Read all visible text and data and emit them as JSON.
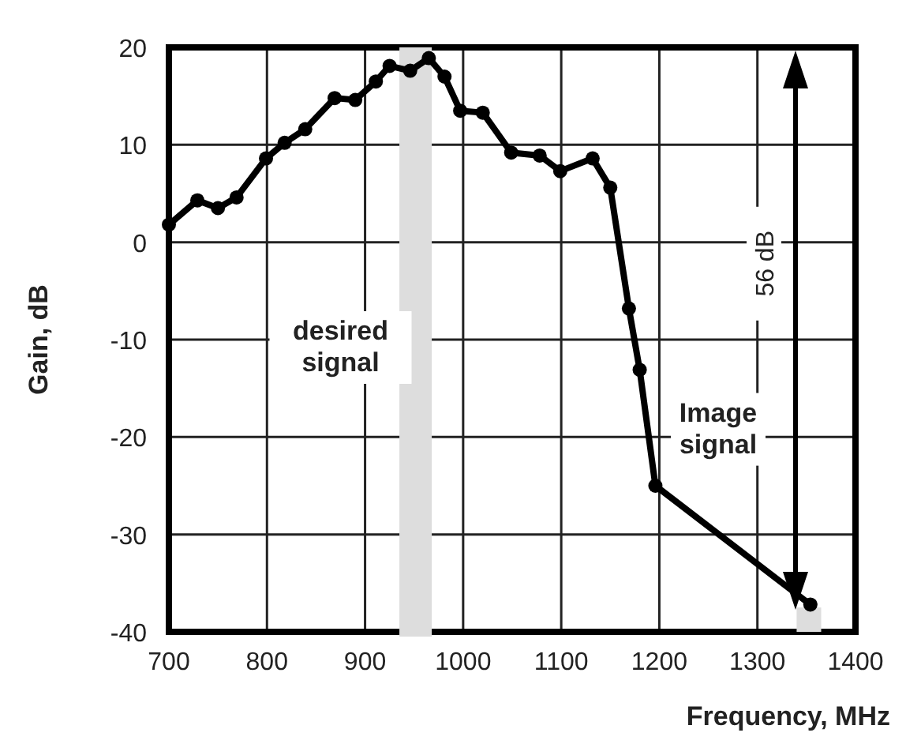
{
  "chart_data": {
    "type": "line",
    "xlabel": "Frequency, MHz",
    "ylabel": "Gain, dB",
    "x": [
      700,
      729,
      750,
      769,
      799,
      818,
      839,
      869,
      890,
      911,
      925,
      946,
      965,
      981,
      997,
      1020,
      1049,
      1078,
      1099,
      1132,
      1150,
      1169,
      1180,
      1196,
      1354
    ],
    "series": [
      {
        "color": "#000000",
        "values": [
          1.8,
          4.3,
          3.5,
          4.6,
          8.6,
          10.2,
          11.6,
          14.8,
          14.6,
          16.5,
          18.1,
          17.6,
          18.9,
          17.0,
          13.5,
          13.3,
          9.2,
          8.9,
          7.3,
          8.6,
          5.6,
          -6.8,
          -13.1,
          -25.0,
          -37.2
        ]
      }
    ],
    "xlim": [
      700,
      1400
    ],
    "xticks": [
      700,
      800,
      900,
      1000,
      1100,
      1200,
      1300,
      1400
    ],
    "ylim": [
      -40,
      20
    ],
    "yticks": [
      -40,
      -30,
      -20,
      -10,
      0,
      10,
      20
    ],
    "grid": true,
    "marker": "circle",
    "line_style": "solid",
    "bands": [
      {
        "axis": "x",
        "from": 935,
        "to": 968,
        "color": "#dddddd"
      }
    ],
    "annotations": [
      "desired signal",
      "Image signal",
      "56 dB"
    ]
  }
}
